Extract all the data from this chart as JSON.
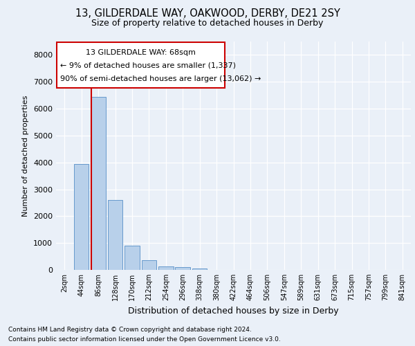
{
  "title1": "13, GILDERDALE WAY, OAKWOOD, DERBY, DE21 2SY",
  "title2": "Size of property relative to detached houses in Derby",
  "xlabel": "Distribution of detached houses by size in Derby",
  "ylabel": "Number of detached properties",
  "categories": [
    "2sqm",
    "44sqm",
    "86sqm",
    "128sqm",
    "170sqm",
    "212sqm",
    "254sqm",
    "296sqm",
    "338sqm",
    "380sqm",
    "422sqm",
    "464sqm",
    "506sqm",
    "547sqm",
    "589sqm",
    "631sqm",
    "673sqm",
    "715sqm",
    "757sqm",
    "799sqm",
    "841sqm"
  ],
  "values": [
    0,
    3950,
    6450,
    2600,
    900,
    350,
    130,
    100,
    55,
    0,
    0,
    0,
    0,
    0,
    0,
    0,
    0,
    0,
    0,
    0,
    0
  ],
  "bar_color": "#b8d0ea",
  "bar_edge_color": "#6699cc",
  "vline_color": "#cc0000",
  "annotation_line1": "13 GILDERDALE WAY: 68sqm",
  "annotation_line2": "← 9% of detached houses are smaller (1,337)",
  "annotation_line3": "90% of semi-detached houses are larger (13,062) →",
  "annotation_box_color": "white",
  "annotation_box_edge": "#cc0000",
  "ylim": [
    0,
    8500
  ],
  "yticks": [
    0,
    1000,
    2000,
    3000,
    4000,
    5000,
    6000,
    7000,
    8000
  ],
  "footer1": "Contains HM Land Registry data © Crown copyright and database right 2024.",
  "footer2": "Contains public sector information licensed under the Open Government Licence v3.0.",
  "bg_color": "#eaf0f8",
  "plot_bg_color": "#eaf0f8"
}
